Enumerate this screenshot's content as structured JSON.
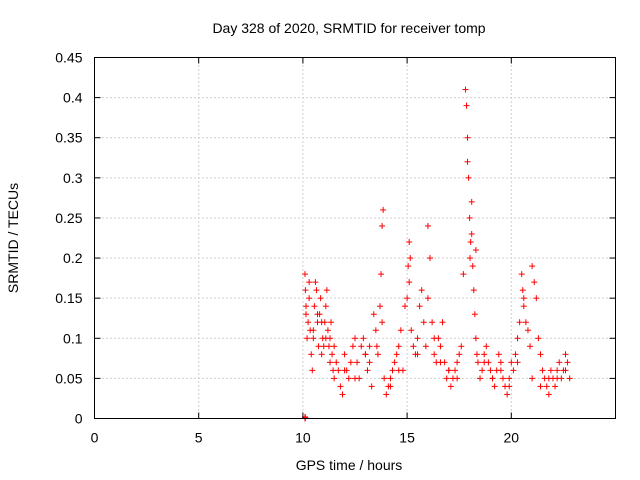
{
  "chart_data": {
    "type": "scatter",
    "title": "Day 328 of 2020, SRMTID for receiver tomp",
    "xlabel": "GPS time / hours",
    "ylabel": "SRMTID / TECUs",
    "xlim": [
      0,
      25
    ],
    "ylim": [
      0,
      0.45
    ],
    "xticks": [
      0,
      5,
      10,
      15,
      20
    ],
    "yticks": [
      0,
      0.05,
      0.1,
      0.15,
      0.2,
      0.25,
      0.3,
      0.35,
      0.4,
      0.45
    ],
    "xtick_labels": [
      "0",
      "5",
      "10",
      "15",
      "20"
    ],
    "ytick_labels": [
      "0",
      "0.05",
      "0.1",
      "0.15",
      "0.2",
      "0.25",
      "0.3",
      "0.35",
      "0.4",
      "0.45"
    ],
    "grid": true,
    "marker": "+",
    "color": "#ff0000",
    "series": [
      {
        "name": "tomp",
        "x": [
          10.1,
          10.12,
          10.15,
          10.2,
          10.25,
          10.3,
          10.35,
          10.4,
          10.45,
          10.5,
          10.55,
          10.6,
          10.65,
          10.7,
          10.75,
          10.8,
          10.85,
          10.9,
          10.95,
          11.0,
          11.05,
          11.1,
          11.15,
          11.2,
          11.25,
          11.3,
          11.35,
          11.4,
          11.45,
          11.5,
          11.6,
          11.7,
          11.8,
          11.9,
          12.0,
          12.1,
          12.2,
          12.3,
          12.4,
          12.5,
          12.6,
          12.7,
          12.8,
          12.9,
          13.0,
          13.1,
          13.2,
          13.3,
          13.4,
          13.5,
          13.55,
          13.6,
          13.7,
          13.75,
          13.8,
          13.85,
          13.9,
          14.0,
          14.1,
          14.2,
          14.3,
          14.4,
          14.5,
          14.6,
          14.7,
          14.8,
          14.9,
          15.0,
          15.05,
          15.1,
          15.15,
          15.2,
          15.3,
          15.4,
          15.5,
          15.6,
          15.7,
          15.8,
          15.9,
          16.0,
          16.1,
          16.2,
          16.3,
          16.4,
          16.5,
          16.6,
          16.7,
          16.8,
          16.9,
          17.0,
          17.1,
          17.2,
          17.3,
          17.4,
          17.5,
          17.6,
          17.7,
          17.8,
          17.85,
          17.9,
          17.95,
          18.0,
          18.02,
          18.05,
          18.1,
          18.15,
          18.2,
          18.25,
          18.3,
          18.35,
          18.4,
          18.5,
          18.6,
          18.7,
          18.8,
          18.9,
          19.0,
          19.1,
          19.2,
          19.3,
          19.4,
          19.5,
          19.6,
          19.7,
          19.8,
          19.9,
          20.0,
          20.1,
          20.2,
          20.3,
          20.4,
          20.5,
          20.55,
          20.6,
          20.7,
          20.8,
          20.9,
          21.0,
          21.1,
          21.2,
          21.3,
          21.4,
          21.5,
          21.6,
          21.7,
          21.8,
          21.9,
          22.0,
          22.1,
          22.2,
          22.3,
          22.4,
          22.5,
          22.6,
          22.7,
          22.8,
          10.15,
          10.3,
          10.5,
          10.7,
          10.9,
          11.1,
          11.3,
          11.5,
          12.0,
          12.5,
          13.0,
          13.2,
          13.8,
          14.2,
          14.6,
          15.1,
          15.5,
          16.0,
          16.3,
          16.6,
          17.0,
          17.4,
          17.9,
          18.1,
          18.3,
          18.7,
          19.1,
          19.5,
          19.9,
          20.3,
          20.6,
          21.0,
          21.4,
          21.8,
          22.2,
          22.6,
          10.1,
          10.1,
          10.12
        ],
        "y": [
          0.18,
          0.16,
          0.13,
          0.1,
          0.12,
          0.15,
          0.11,
          0.08,
          0.06,
          0.1,
          0.14,
          0.17,
          0.16,
          0.12,
          0.09,
          0.13,
          0.15,
          0.12,
          0.1,
          0.09,
          0.12,
          0.14,
          0.16,
          0.11,
          0.09,
          0.1,
          0.12,
          0.08,
          0.06,
          0.05,
          0.07,
          0.06,
          0.04,
          0.03,
          0.08,
          0.06,
          0.05,
          0.07,
          0.09,
          0.1,
          0.07,
          0.05,
          0.09,
          0.1,
          0.08,
          0.06,
          0.07,
          0.04,
          0.13,
          0.11,
          0.09,
          0.08,
          0.14,
          0.18,
          0.24,
          0.26,
          0.05,
          0.03,
          0.04,
          0.05,
          0.06,
          0.07,
          0.08,
          0.09,
          0.11,
          0.06,
          0.14,
          0.15,
          0.19,
          0.22,
          0.2,
          0.11,
          0.09,
          0.08,
          0.1,
          0.14,
          0.16,
          0.12,
          0.09,
          0.24,
          0.2,
          0.12,
          0.08,
          0.07,
          0.1,
          0.09,
          0.12,
          0.07,
          0.05,
          0.06,
          0.04,
          0.05,
          0.06,
          0.07,
          0.08,
          0.09,
          0.18,
          0.41,
          0.39,
          0.35,
          0.3,
          0.25,
          0.2,
          0.22,
          0.27,
          0.19,
          0.16,
          0.13,
          0.1,
          0.08,
          0.07,
          0.05,
          0.06,
          0.08,
          0.09,
          0.07,
          0.06,
          0.05,
          0.04,
          0.06,
          0.08,
          0.07,
          0.05,
          0.04,
          0.03,
          0.05,
          0.07,
          0.06,
          0.08,
          0.1,
          0.12,
          0.18,
          0.16,
          0.14,
          0.12,
          0.11,
          0.09,
          0.19,
          0.17,
          0.15,
          0.1,
          0.08,
          0.06,
          0.05,
          0.04,
          0.05,
          0.06,
          0.05,
          0.04,
          0.06,
          0.07,
          0.05,
          0.06,
          0.08,
          0.07,
          0.05,
          0.14,
          0.17,
          0.11,
          0.13,
          0.08,
          0.1,
          0.07,
          0.09,
          0.06,
          0.05,
          0.08,
          0.09,
          0.12,
          0.04,
          0.06,
          0.17,
          0.08,
          0.15,
          0.1,
          0.07,
          0.06,
          0.05,
          0.32,
          0.23,
          0.21,
          0.07,
          0.05,
          0.06,
          0.04,
          0.07,
          0.15,
          0.05,
          0.04,
          0.03,
          0.05,
          0.06,
          0.0,
          0.002,
          0.001
        ]
      }
    ]
  }
}
